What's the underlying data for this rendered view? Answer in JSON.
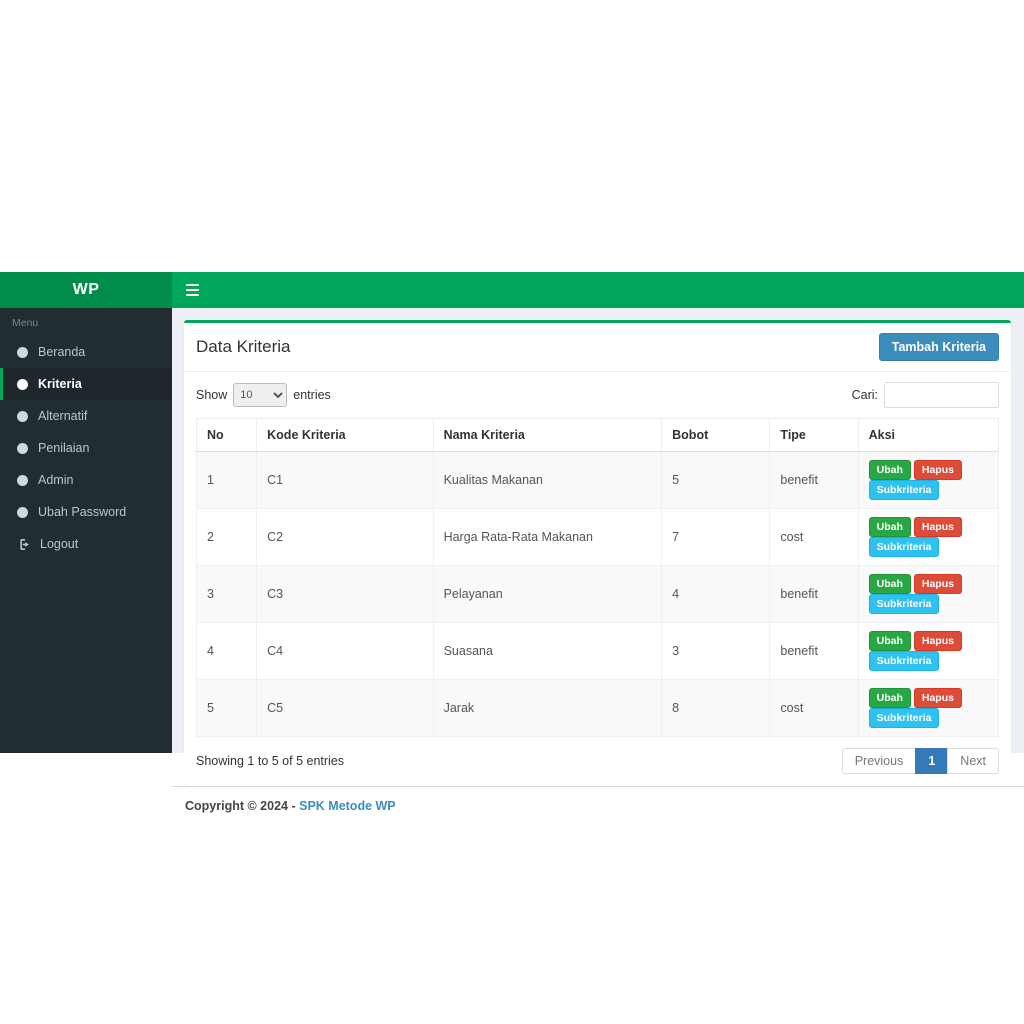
{
  "brand": {
    "logo_text": "WP"
  },
  "sidebar": {
    "menu_header": "Menu",
    "items": [
      {
        "label": "Beranda",
        "icon": "circle-icon",
        "active": false
      },
      {
        "label": "Kriteria",
        "icon": "circle-icon",
        "active": true
      },
      {
        "label": "Alternatif",
        "icon": "circle-icon",
        "active": false
      },
      {
        "label": "Penilaian",
        "icon": "circle-icon",
        "active": false
      },
      {
        "label": "Admin",
        "icon": "circle-icon",
        "active": false
      },
      {
        "label": "Ubah Password",
        "icon": "circle-icon",
        "active": false
      },
      {
        "label": "Logout",
        "icon": "logout-icon",
        "active": false
      }
    ]
  },
  "box": {
    "title": "Data Kriteria",
    "add_button_label": "Tambah Kriteria"
  },
  "controls": {
    "show_label": "Show",
    "entries_label": "entries",
    "length_value": "10",
    "search_label": "Cari:",
    "search_value": ""
  },
  "table": {
    "headers": [
      "No",
      "Kode Kriteria",
      "Nama Kriteria",
      "Bobot",
      "Tipe",
      "Aksi"
    ],
    "rows": [
      {
        "no": "1",
        "kode": "C1",
        "nama": "Kualitas Makanan",
        "bobot": "5",
        "tipe": "benefit"
      },
      {
        "no": "2",
        "kode": "C2",
        "nama": "Harga Rata-Rata Makanan",
        "bobot": "7",
        "tipe": "cost"
      },
      {
        "no": "3",
        "kode": "C3",
        "nama": "Pelayanan",
        "bobot": "4",
        "tipe": "benefit"
      },
      {
        "no": "4",
        "kode": "C4",
        "nama": "Suasana",
        "bobot": "3",
        "tipe": "benefit"
      },
      {
        "no": "5",
        "kode": "C5",
        "nama": "Jarak",
        "bobot": "8",
        "tipe": "cost"
      }
    ],
    "action_labels": {
      "ubah": "Ubah",
      "hapus": "Hapus",
      "subkriteria": "Subkriteria"
    }
  },
  "pagination": {
    "showing_info": "Showing 1 to 5 of 5 entries",
    "previous_label": "Previous",
    "current_page": "1",
    "next_label": "Next"
  },
  "footer": {
    "copyright_text": "Copyright © 2024 -",
    "link_text": "SPK Metode WP"
  },
  "colors": {
    "navbar_green": "#00a65a",
    "logo_green": "#008d4c",
    "sidebar_dark": "#222d32",
    "primary_blue": "#3c8dbc",
    "active_page_blue": "#337ab7",
    "btn_ubah_green": "#28a745",
    "btn_hapus_red": "#dd4b39",
    "btn_subkriteria_cyan": "#2fc1ef",
    "content_bg": "#ecf0f5"
  }
}
